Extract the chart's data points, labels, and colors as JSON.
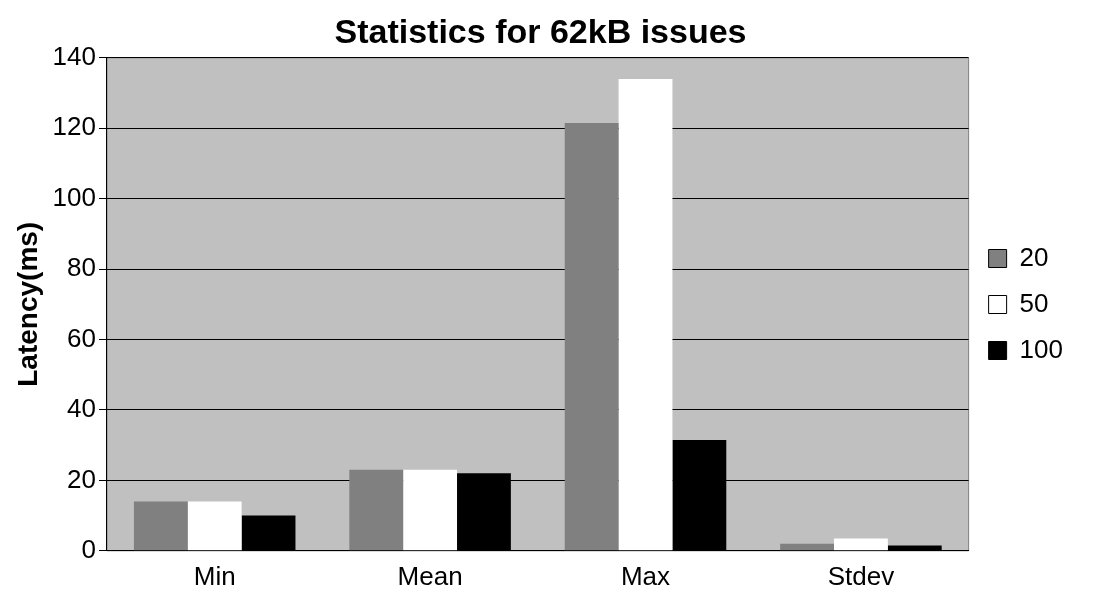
{
  "chart_data": {
    "type": "bar",
    "title": "Statistics for 62kB issues",
    "ylabel": "Latency(ms)",
    "categories": [
      "Min",
      "Mean",
      "Max",
      "Stdev"
    ],
    "series": [
      {
        "name": "20",
        "color": "#808080",
        "values": [
          14,
          23,
          121.5,
          2
        ]
      },
      {
        "name": "50",
        "color": "#ffffff",
        "values": [
          14,
          23,
          134,
          3.5
        ]
      },
      {
        "name": "100",
        "color": "#000000",
        "values": [
          10,
          22,
          31.5,
          1.5
        ]
      }
    ],
    "ylim": [
      0,
      140
    ],
    "yticks": [
      0,
      20,
      40,
      60,
      80,
      100,
      120,
      140
    ],
    "grid": "y",
    "legend": "right"
  }
}
